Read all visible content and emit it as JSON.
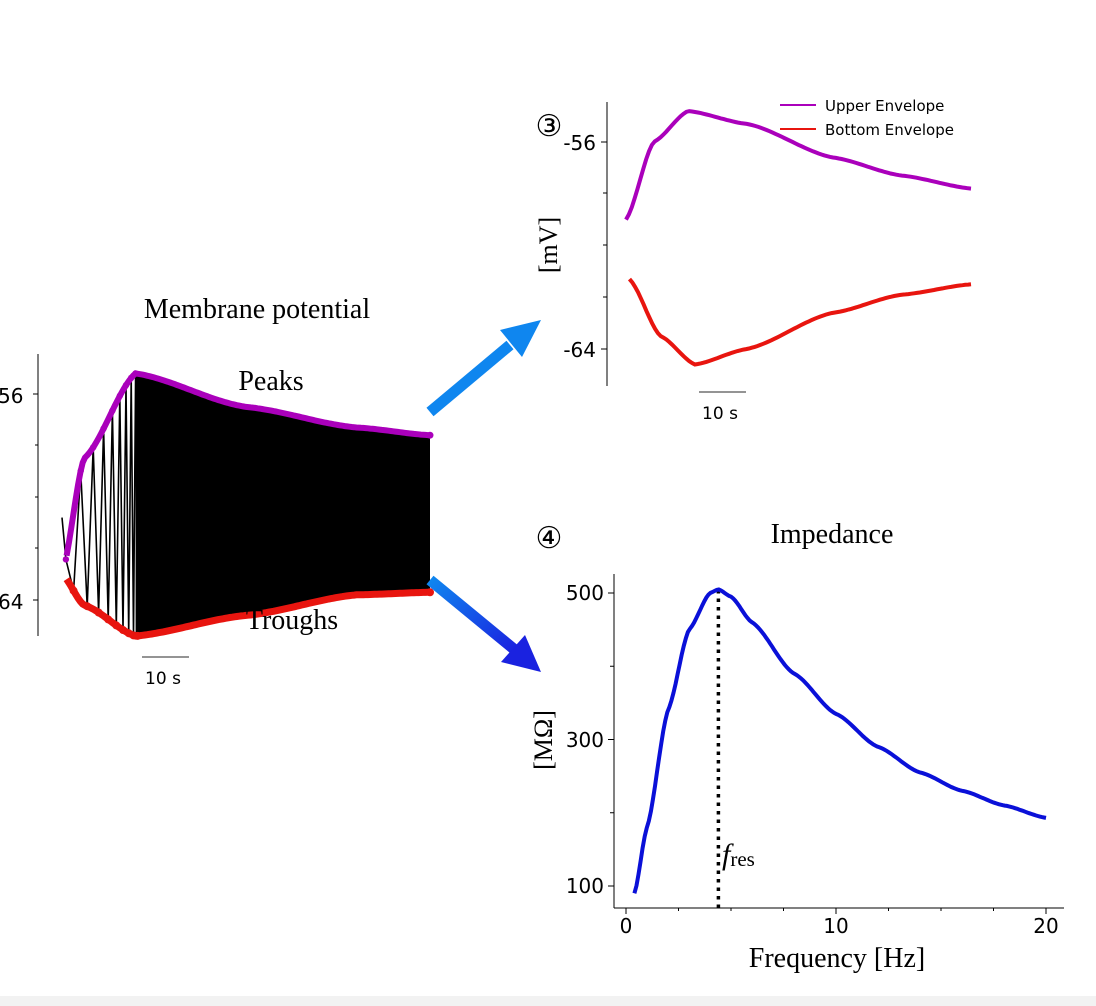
{
  "colors": {
    "upper": "#aa00bb",
    "bottom": "#e8150f",
    "trace": "#000000",
    "impedance": "#0a10d8",
    "arrow_top": "#0f86ef",
    "arrow_bottom_start": "#0f86ef",
    "arrow_bottom_end": "#1a22e0"
  },
  "panel_left": {
    "title": "Membrane potential",
    "peaks_label": "Peaks",
    "troughs_label": "Troughs",
    "tick_labels": [
      "56",
      "64"
    ],
    "scalebar_label": "10 s"
  },
  "chart_data": [
    {
      "type": "line",
      "title": "Membrane potential",
      "annotations": [
        "Peaks",
        "Troughs"
      ],
      "y_tick_labels": [
        "56",
        "64"
      ],
      "scalebar": "10 s",
      "series": [
        {
          "values_mV_start": -60.8,
          "kind": "oscillating trace"
        },
        {
          "name": "Peaks",
          "envelope": [
            [
              0,
              -63.0
            ],
            [
              6,
              -58.5
            ],
            [
              20,
              -55.2
            ],
            [
              50,
              -56.5
            ],
            [
              80,
              -57.3
            ],
            [
              100,
              -57.6
            ]
          ]
        },
        {
          "name": "Troughs",
          "envelope": [
            [
              0,
              -63.0
            ],
            [
              6,
              -64.2
            ],
            [
              20,
              -65.4
            ],
            [
              50,
              -64.6
            ],
            [
              80,
              -63.8
            ],
            [
              100,
              -63.7
            ]
          ]
        }
      ]
    },
    {
      "type": "line",
      "panel_marker": "③",
      "ylabel": "[mV]",
      "y_ticks": [
        -56,
        -64
      ],
      "scalebar": "10 s",
      "legend_position": "top-right",
      "series": [
        {
          "name": "Upper Envelope",
          "points": [
            [
              0,
              -59.0
            ],
            [
              8,
              -56.0
            ],
            [
              18,
              -54.8
            ],
            [
              35,
              -55.3
            ],
            [
              60,
              -56.6
            ],
            [
              80,
              -57.3
            ],
            [
              100,
              -57.8
            ]
          ]
        },
        {
          "name": "Bottom Envelope",
          "points": [
            [
              1,
              -61.3
            ],
            [
              10,
              -63.5
            ],
            [
              20,
              -64.6
            ],
            [
              35,
              -64.0
            ],
            [
              60,
              -62.6
            ],
            [
              80,
              -61.9
            ],
            [
              100,
              -61.5
            ]
          ]
        }
      ]
    },
    {
      "type": "line",
      "panel_marker": "④",
      "title": "Impedance",
      "xlabel": "Frequency [Hz]",
      "ylabel": "[MΩ]",
      "x_ticks": [
        0,
        10,
        20
      ],
      "y_ticks": [
        500,
        300,
        100
      ],
      "xlim": [
        -0.5,
        21
      ],
      "ylim": [
        80,
        530
      ],
      "annotation": "f_res",
      "f_res": 4.4,
      "series": [
        {
          "points": [
            [
              0.4,
              90
            ],
            [
              1,
              180
            ],
            [
              2,
              340
            ],
            [
              3,
              450
            ],
            [
              4,
              500
            ],
            [
              4.4,
              505
            ],
            [
              5,
              495
            ],
            [
              6,
              460
            ],
            [
              8,
              390
            ],
            [
              10,
              335
            ],
            [
              12,
              290
            ],
            [
              14,
              255
            ],
            [
              16,
              230
            ],
            [
              18,
              210
            ],
            [
              20,
              193
            ]
          ]
        }
      ]
    }
  ],
  "legend": {
    "upper": "Upper Envelope",
    "bottom": "Bottom Envelope"
  },
  "panel_envelope": {
    "marker": "③",
    "ylabel": "[mV]",
    "tick_labels": [
      "-56",
      "-64"
    ],
    "scalebar_label": "10 s"
  },
  "panel_impedance": {
    "marker": "④",
    "title": "Impedance",
    "ylabel": "[MΩ]",
    "xlabel": "Frequency [Hz]",
    "x_tick_labels": [
      "0",
      "10",
      "20"
    ],
    "y_tick_labels": [
      "500",
      "300",
      "100"
    ],
    "fres_main": "f",
    "fres_sub": "res"
  }
}
